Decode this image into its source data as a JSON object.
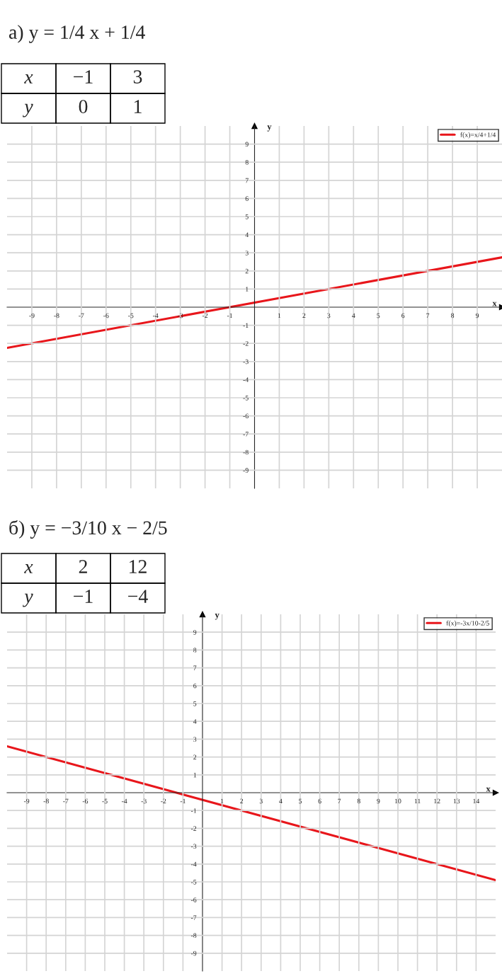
{
  "chart_data": [
    {
      "type": "line",
      "title": "а) y = 1/4 x + 1/4",
      "xlabel": "x",
      "ylabel": "y",
      "annotations": [
        "x",
        "−1",
        "3",
        "y",
        "0",
        "1"
      ],
      "series": [
        {
          "name": "f(x)=x/4+1/4",
          "color": "#e8161b",
          "x": [
            -10,
            10
          ],
          "values": [
            -2.25,
            2.75
          ]
        }
      ],
      "xlim": [
        -10,
        10
      ],
      "ylim": [
        -10,
        10
      ],
      "xticks": [
        -9,
        -8,
        -7,
        -6,
        -5,
        -4,
        -3,
        -2,
        -1,
        1,
        2,
        3,
        4,
        5,
        6,
        7,
        8,
        9
      ],
      "yticks": [
        -9,
        -8,
        -7,
        -6,
        -5,
        -4,
        -3,
        -2,
        -1,
        1,
        2,
        3,
        4,
        5,
        6,
        7,
        8,
        9
      ],
      "grid": true,
      "legend": "top right",
      "marker": "none",
      "line_style": "solid"
    },
    {
      "type": "line",
      "title": "б) y = −3/10 x − 2/5",
      "xlabel": "x",
      "ylabel": "y",
      "annotations": [
        "x",
        "2",
        "12",
        "y",
        "−1",
        "−4"
      ],
      "series": [
        {
          "name": "f(x)=-3x/10-2/5",
          "color": "#e8161b",
          "x": [
            -10,
            15
          ],
          "values": [
            2.6,
            -4.9
          ]
        }
      ],
      "xlim": [
        -10,
        15
      ],
      "ylim": [
        -10,
        10
      ],
      "xticks": [
        -9,
        -8,
        -7,
        -6,
        -5,
        -4,
        -3,
        -2,
        -1,
        1,
        2,
        3,
        4,
        5,
        6,
        7,
        8,
        9,
        10,
        11,
        12,
        13,
        14
      ],
      "yticks": [
        -9,
        -8,
        -7,
        -6,
        -5,
        -4,
        -3,
        -2,
        -1,
        1,
        2,
        3,
        4,
        5,
        6,
        7,
        8,
        9
      ],
      "grid": true,
      "legend": "top right",
      "marker": "none",
      "line_style": "solid"
    }
  ]
}
